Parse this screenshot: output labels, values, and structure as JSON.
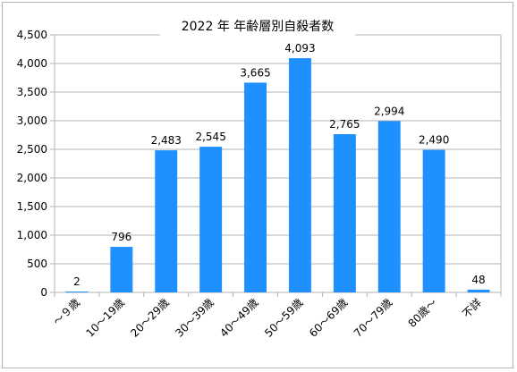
{
  "chart_data": {
    "type": "bar",
    "title": "2022 年 年齢層別自殺者数",
    "categories": [
      "～９歳",
      "10～19歳",
      "20～29歳",
      "30～39歳",
      "40～49歳",
      "50～59歳",
      "60～69歳",
      "70～79歳",
      "80歳～",
      "不詳"
    ],
    "values": [
      2,
      796,
      2483,
      2545,
      3665,
      4093,
      2765,
      2994,
      2490,
      48
    ],
    "data_labels": [
      "2",
      "796",
      "2,483",
      "2,545",
      "3,665",
      "4,093",
      "2,765",
      "2,994",
      "2,490",
      "48"
    ],
    "ylim": [
      0,
      4500
    ],
    "yticks": [
      "0",
      "500",
      "1,000",
      "1,500",
      "2,000",
      "2,500",
      "3,000",
      "3,500",
      "4,000",
      "4,500"
    ],
    "ytick_values": [
      0,
      500,
      1000,
      1500,
      2000,
      2500,
      3000,
      3500,
      4000,
      4500
    ],
    "grid": "horizontal",
    "legend": "none",
    "bar_color": "#1e90ff",
    "grid_color": "#b3b3b3"
  }
}
